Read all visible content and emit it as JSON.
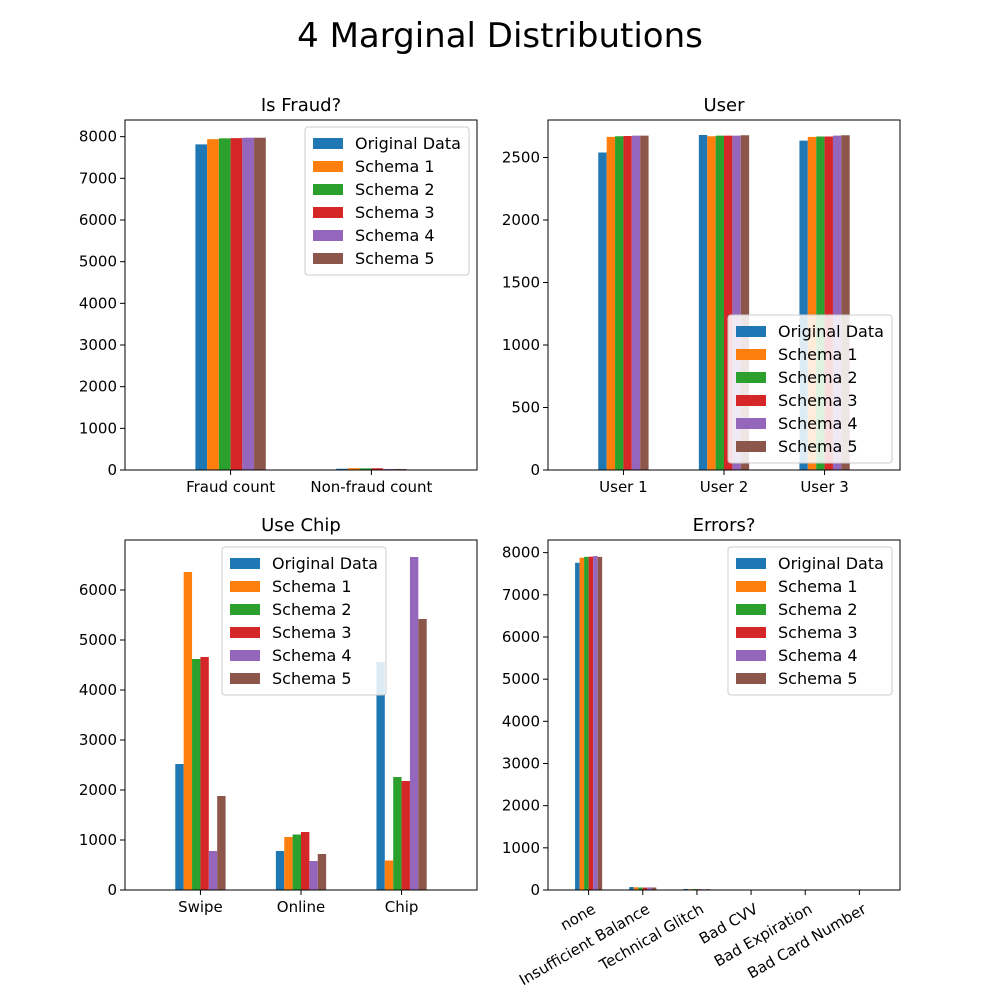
{
  "title": "4 Marginal Distributions",
  "colors": {
    "Original Data": "#1f77b4",
    "Schema 1": "#ff7f0e",
    "Schema 2": "#2ca02c",
    "Schema 3": "#d62728",
    "Schema 4": "#9467bd",
    "Schema 5": "#8c564b"
  },
  "chart_data": [
    {
      "type": "bar",
      "title": "Is Fraud?",
      "categories": [
        "Fraud count",
        "Non-fraud count"
      ],
      "ylim": [
        0,
        8400
      ],
      "yticks": [
        0,
        1000,
        2000,
        3000,
        4000,
        5000,
        6000,
        7000,
        8000
      ],
      "legend": "upper-right",
      "series": [
        {
          "name": "Original Data",
          "values": [
            7815,
            30
          ]
        },
        {
          "name": "Schema 1",
          "values": [
            7940,
            45
          ]
        },
        {
          "name": "Schema 2",
          "values": [
            7960,
            40
          ]
        },
        {
          "name": "Schema 3",
          "values": [
            7965,
            42
          ]
        },
        {
          "name": "Schema 4",
          "values": [
            7975,
            25
          ]
        },
        {
          "name": "Schema 5",
          "values": [
            7975,
            25
          ]
        }
      ]
    },
    {
      "type": "bar",
      "title": "User",
      "categories": [
        "User 1",
        "User 2",
        "User 3"
      ],
      "ylim": [
        0,
        2800
      ],
      "yticks": [
        0,
        500,
        1000,
        1500,
        2000,
        2500
      ],
      "legend": "lower-right",
      "series": [
        {
          "name": "Original Data",
          "values": [
            2540,
            2680,
            2635
          ]
        },
        {
          "name": "Schema 1",
          "values": [
            2665,
            2670,
            2665
          ]
        },
        {
          "name": "Schema 2",
          "values": [
            2670,
            2675,
            2668
          ]
        },
        {
          "name": "Schema 3",
          "values": [
            2672,
            2675,
            2668
          ]
        },
        {
          "name": "Schema 4",
          "values": [
            2675,
            2675,
            2675
          ]
        },
        {
          "name": "Schema 5",
          "values": [
            2675,
            2678,
            2678
          ]
        }
      ]
    },
    {
      "type": "bar",
      "title": "Use Chip",
      "categories": [
        "Swipe",
        "Online",
        "Chip"
      ],
      "ylim": [
        0,
        7000
      ],
      "yticks": [
        0,
        1000,
        2000,
        3000,
        4000,
        5000,
        6000
      ],
      "legend": "upper-center",
      "series": [
        {
          "name": "Original Data",
          "values": [
            2520,
            780,
            4560
          ]
        },
        {
          "name": "Schema 1",
          "values": [
            6360,
            1060,
            590
          ]
        },
        {
          "name": "Schema 2",
          "values": [
            4620,
            1110,
            2260
          ]
        },
        {
          "name": "Schema 3",
          "values": [
            4660,
            1160,
            2180
          ]
        },
        {
          "name": "Schema 4",
          "values": [
            780,
            580,
            6660
          ]
        },
        {
          "name": "Schema 5",
          "values": [
            1880,
            720,
            5420
          ]
        }
      ]
    },
    {
      "type": "bar",
      "title": "Errors?",
      "categories": [
        "none",
        "Insufficient Balance",
        "Technical Glitch",
        "Bad CVV",
        "Bad Expiration",
        "Bad Card Number"
      ],
      "ylim": [
        0,
        8300
      ],
      "yticks": [
        0,
        1000,
        2000,
        3000,
        4000,
        5000,
        6000,
        7000,
        8000
      ],
      "legend": "upper-right",
      "series": [
        {
          "name": "Original Data",
          "values": [
            7760,
            70,
            25,
            5,
            3,
            3
          ]
        },
        {
          "name": "Schema 1",
          "values": [
            7880,
            65,
            20,
            3,
            2,
            2
          ]
        },
        {
          "name": "Schema 2",
          "values": [
            7900,
            60,
            22,
            3,
            2,
            2
          ]
        },
        {
          "name": "Schema 3",
          "values": [
            7905,
            58,
            20,
            3,
            2,
            2
          ]
        },
        {
          "name": "Schema 4",
          "values": [
            7920,
            62,
            18,
            2,
            2,
            2
          ]
        },
        {
          "name": "Schema 5",
          "values": [
            7900,
            60,
            20,
            3,
            2,
            2
          ]
        }
      ]
    }
  ]
}
